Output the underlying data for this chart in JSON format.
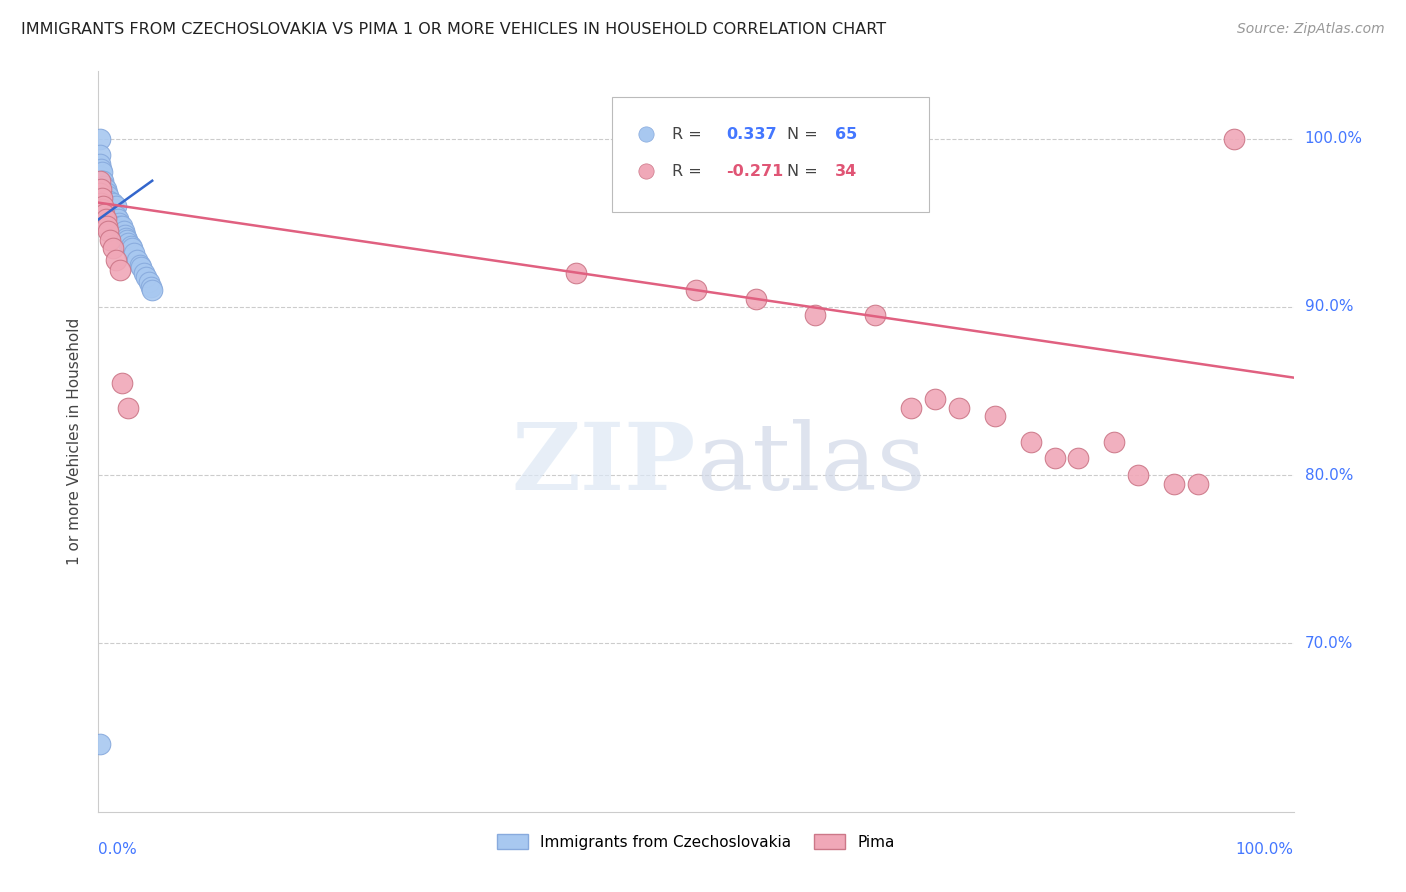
{
  "title": "IMMIGRANTS FROM CZECHOSLOVAKIA VS PIMA 1 OR MORE VEHICLES IN HOUSEHOLD CORRELATION CHART",
  "source": "Source: ZipAtlas.com",
  "ylabel": "1 or more Vehicles in Household",
  "legend1_label": "Immigrants from Czechoslovakia",
  "legend2_label": "Pima",
  "r1": 0.337,
  "n1": 65,
  "r2": -0.271,
  "n2": 34,
  "blue_color": "#a8c8f0",
  "pink_color": "#f0a8b8",
  "line_blue": "#3366cc",
  "line_pink": "#e06080",
  "xlim": [
    0.0,
    1.0
  ],
  "ylim": [
    0.6,
    1.04
  ],
  "yticks": [
    0.7,
    0.8,
    0.9,
    1.0
  ],
  "ytick_labels": [
    "70.0%",
    "80.0%",
    "90.0%",
    "100.0%"
  ],
  "blue_x": [
    0.001,
    0.001,
    0.001,
    0.001,
    0.001,
    0.002,
    0.002,
    0.002,
    0.002,
    0.003,
    0.003,
    0.003,
    0.003,
    0.004,
    0.004,
    0.004,
    0.005,
    0.005,
    0.005,
    0.006,
    0.006,
    0.006,
    0.007,
    0.007,
    0.008,
    0.008,
    0.008,
    0.009,
    0.009,
    0.01,
    0.01,
    0.01,
    0.011,
    0.012,
    0.012,
    0.013,
    0.013,
    0.014,
    0.015,
    0.015,
    0.016,
    0.017,
    0.018,
    0.019,
    0.02,
    0.021,
    0.022,
    0.023,
    0.024,
    0.025,
    0.027,
    0.028,
    0.03,
    0.032,
    0.035,
    0.036,
    0.038,
    0.04,
    0.042,
    0.044,
    0.045,
    0.001,
    0.001,
    0.001,
    0.001
  ],
  "blue_y": [
    1.0,
    0.99,
    0.985,
    0.978,
    0.965,
    0.982,
    0.975,
    0.972,
    0.968,
    0.98,
    0.975,
    0.97,
    0.965,
    0.975,
    0.97,
    0.965,
    0.972,
    0.968,
    0.96,
    0.97,
    0.965,
    0.96,
    0.968,
    0.962,
    0.966,
    0.96,
    0.955,
    0.963,
    0.958,
    0.962,
    0.958,
    0.952,
    0.958,
    0.962,
    0.956,
    0.958,
    0.952,
    0.955,
    0.96,
    0.954,
    0.952,
    0.95,
    0.948,
    0.946,
    0.948,
    0.945,
    0.943,
    0.941,
    0.94,
    0.938,
    0.936,
    0.935,
    0.932,
    0.928,
    0.925,
    0.924,
    0.92,
    0.918,
    0.915,
    0.912,
    0.91,
    0.97,
    0.962,
    0.955,
    0.64
  ],
  "pink_x": [
    0.001,
    0.001,
    0.002,
    0.002,
    0.003,
    0.003,
    0.004,
    0.005,
    0.006,
    0.007,
    0.008,
    0.01,
    0.012,
    0.015,
    0.018,
    0.02,
    0.025,
    0.4,
    0.5,
    0.55,
    0.6,
    0.65,
    0.68,
    0.7,
    0.72,
    0.75,
    0.78,
    0.8,
    0.82,
    0.85,
    0.87,
    0.9,
    0.92,
    0.95
  ],
  "pink_y": [
    0.975,
    0.968,
    0.97,
    0.962,
    0.965,
    0.958,
    0.96,
    0.955,
    0.952,
    0.948,
    0.945,
    0.94,
    0.935,
    0.928,
    0.922,
    0.855,
    0.84,
    0.92,
    0.91,
    0.905,
    0.895,
    0.895,
    0.84,
    0.845,
    0.84,
    0.835,
    0.82,
    0.81,
    0.81,
    0.82,
    0.8,
    0.795,
    0.795,
    1.0
  ],
  "blue_trend_x": [
    0.0,
    0.045
  ],
  "blue_trend_y": [
    0.952,
    0.975
  ],
  "pink_trend_x": [
    0.0,
    1.0
  ],
  "pink_trend_y": [
    0.962,
    0.858
  ]
}
